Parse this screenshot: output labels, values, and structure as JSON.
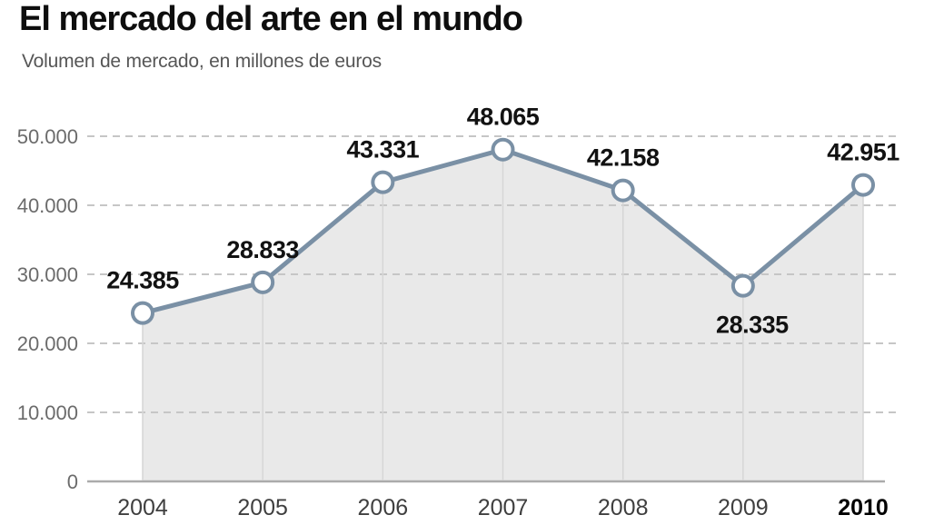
{
  "header": {
    "title": "El mercado del arte en el mundo",
    "subtitle": "Volumen de mercado, en millones de euros"
  },
  "chart_data": {
    "type": "area",
    "title": "El mercado del arte en el mundo",
    "subtitle": "Volumen de mercado, en millones de euros",
    "x": [
      "2004",
      "2005",
      "2006",
      "2007",
      "2008",
      "2009",
      "2010"
    ],
    "series": [
      {
        "name": "Volumen de mercado (millones de euros)",
        "values": [
          24385,
          28833,
          43331,
          48065,
          42158,
          28335,
          42951
        ],
        "labels": [
          "24.385",
          "28.833",
          "43.331",
          "48.065",
          "42.158",
          "28.335",
          "42.951"
        ]
      }
    ],
    "xlabel": "",
    "ylabel": "Volumen de mercado, en millones de euros",
    "ylim": [
      0,
      53000
    ],
    "yticks": {
      "values": [
        0,
        10000,
        20000,
        30000,
        40000,
        50000
      ],
      "labels": [
        "0",
        "10.000",
        "20.000",
        "30.000",
        "40.000",
        "50.000"
      ]
    },
    "grid": "dashed-horizontal",
    "legend": "none",
    "label_positions": {
      "2009": "below"
    },
    "emphasized_x_label": "2010",
    "colors": {
      "line": "#7a90a5",
      "marker_fill": "#ffffff",
      "area_fill": "#e9e9e9",
      "year_gridline": "#d6d6d6",
      "grid": "#c6c6c6",
      "axis": "#ababab",
      "data_label": "#121212",
      "tick_label": "#6b6b6b",
      "x_label": "#3f3f3f",
      "x_label_bold": "#000000",
      "title": "#0e0e0e",
      "subtitle": "#565656"
    }
  }
}
